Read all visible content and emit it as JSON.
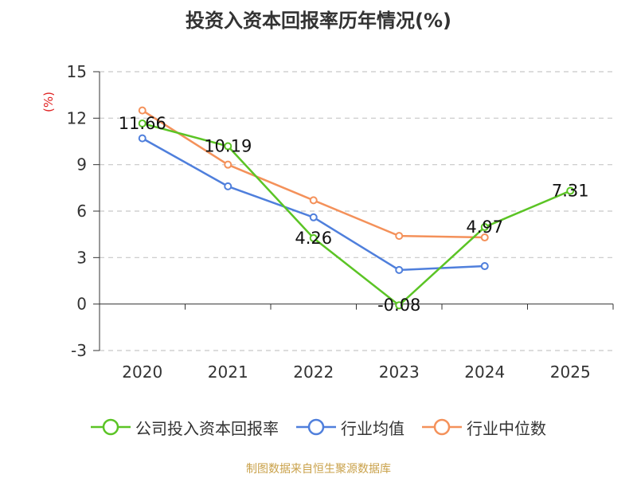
{
  "chart_data": {
    "type": "line",
    "title": "投资入资本回报率历年情况(%)",
    "ylabel": "(%)",
    "xlabel": "",
    "categories": [
      "2020",
      "2021",
      "2022",
      "2023",
      "2024",
      "2025"
    ],
    "ylim": [
      -3,
      15
    ],
    "yticks": [
      -3,
      0,
      3,
      6,
      9,
      12,
      15
    ],
    "grid": true,
    "legend_position": "bottom",
    "series": [
      {
        "name": "公司投入资本回报率",
        "color": "#5bc425",
        "values": [
          11.66,
          10.19,
          4.26,
          -0.08,
          4.97,
          7.31
        ],
        "labels": [
          "11.66",
          "10.19",
          "4.26",
          "-0.08",
          "4.97",
          "7.31"
        ]
      },
      {
        "name": "行业均值",
        "color": "#4f7fdc",
        "values": [
          10.7,
          7.6,
          5.6,
          2.2,
          2.45,
          null
        ]
      },
      {
        "name": "行业中位数",
        "color": "#f4915a",
        "values": [
          12.5,
          9.0,
          6.7,
          4.4,
          4.3,
          null
        ]
      }
    ]
  },
  "source": {
    "text": "制图数据来自恒生聚源数据库",
    "color": "#c9a14a"
  },
  "ylabel_color": "#e02020"
}
